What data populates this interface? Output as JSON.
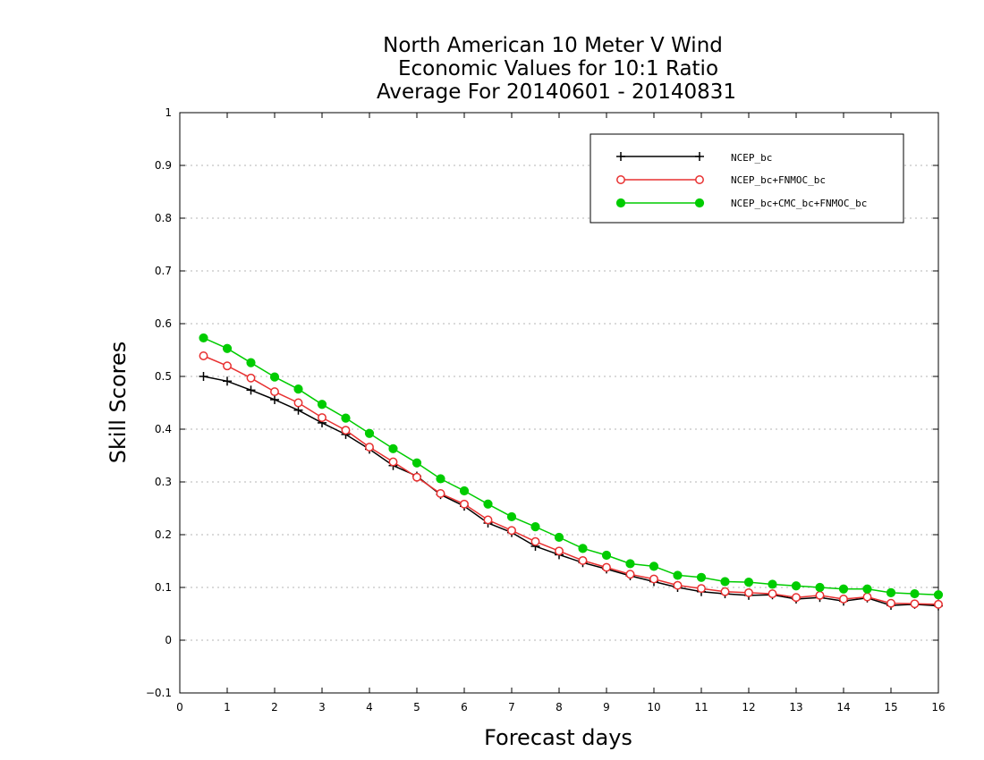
{
  "chart_data": {
    "type": "line",
    "title": [
      "North American 10 Meter V Wind",
      "Economic Values for 10:1 Ratio",
      "Average For 20140601 - 20140831"
    ],
    "xlabel": "Forecast days",
    "ylabel": "Skill Scores",
    "xlim": [
      0,
      16
    ],
    "ylim": [
      -0.1,
      1
    ],
    "xticks": [
      "0",
      "1",
      "2",
      "3",
      "4",
      "5",
      "6",
      "7",
      "8",
      "9",
      "10",
      "11",
      "12",
      "13",
      "14",
      "15",
      "16"
    ],
    "yticks": [
      "−0.1",
      "0",
      "0.1",
      "0.2",
      "0.3",
      "0.4",
      "0.5",
      "0.6",
      "0.7",
      "0.8",
      "0.9",
      "1"
    ],
    "grid": true,
    "legend_position": "top-right",
    "x": [
      0.5,
      1,
      1.5,
      2,
      2.5,
      3,
      3.5,
      4,
      4.5,
      5,
      5.5,
      6,
      6.5,
      7,
      7.5,
      8,
      8.5,
      9,
      9.5,
      10,
      10.5,
      11,
      11.5,
      12,
      12.5,
      13,
      13.5,
      14,
      14.5,
      15,
      15.5,
      16
    ],
    "series": [
      {
        "name": "NCEP_bc",
        "color": "#000000",
        "marker": "plus",
        "values": [
          0.5,
          0.491,
          0.474,
          0.456,
          0.436,
          0.412,
          0.39,
          0.362,
          0.331,
          0.311,
          0.276,
          0.254,
          0.222,
          0.204,
          0.178,
          0.162,
          0.147,
          0.135,
          0.122,
          0.111,
          0.1,
          0.092,
          0.088,
          0.085,
          0.086,
          0.078,
          0.081,
          0.074,
          0.08,
          0.066,
          0.068,
          0.065
        ]
      },
      {
        "name": "NCEP_bc+FNMOC_bc",
        "color": "#e83030",
        "marker": "open-circle",
        "values": [
          0.539,
          0.52,
          0.497,
          0.471,
          0.45,
          0.422,
          0.398,
          0.366,
          0.338,
          0.309,
          0.278,
          0.258,
          0.228,
          0.208,
          0.187,
          0.169,
          0.151,
          0.138,
          0.125,
          0.116,
          0.104,
          0.098,
          0.092,
          0.09,
          0.088,
          0.081,
          0.085,
          0.078,
          0.082,
          0.07,
          0.069,
          0.068
        ]
      },
      {
        "name": "NCEP_bc+CMC_bc+FNMOC_bc",
        "color": "#00cc00",
        "marker": "filled-circle",
        "values": [
          0.573,
          0.553,
          0.526,
          0.499,
          0.476,
          0.447,
          0.421,
          0.392,
          0.363,
          0.336,
          0.306,
          0.283,
          0.258,
          0.234,
          0.215,
          0.195,
          0.174,
          0.161,
          0.145,
          0.14,
          0.123,
          0.119,
          0.111,
          0.11,
          0.106,
          0.103,
          0.1,
          0.097,
          0.097,
          0.09,
          0.088,
          0.086
        ]
      }
    ]
  }
}
